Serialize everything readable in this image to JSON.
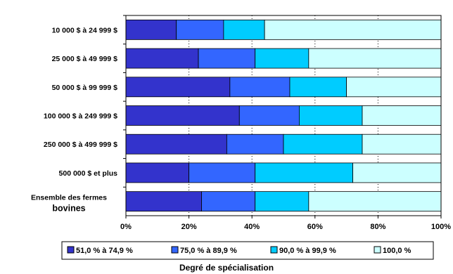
{
  "chart_data": {
    "type": "bar",
    "orientation": "horizontal",
    "stacked": true,
    "percent": true,
    "title": "",
    "xlabel": "Degré de spécialisation",
    "ylabel": "",
    "xlim": [
      0,
      100
    ],
    "x_ticks": [
      "0%",
      "20%",
      "40%",
      "60%",
      "80%",
      "100%"
    ],
    "grid": "vertical dotted",
    "legend_position": "bottom",
    "categories": [
      "10 000 $ à 24 999 $",
      "25 000 $ à 49 999 $",
      "50 000 $ à 99 999 $",
      "100 000 $ à 249 999 $",
      "250 000 $ à 499 999 $",
      "500 000 $ et plus",
      [
        "Ensemble des fermes",
        "bovines"
      ]
    ],
    "series": [
      {
        "name": "51,0 % à 74,9 %",
        "color": "#3333cc",
        "values": [
          16,
          23,
          33,
          36,
          32,
          20,
          24
        ]
      },
      {
        "name": "75,0 % à 89,9 %",
        "color": "#3366ff",
        "values": [
          15,
          18,
          19,
          19,
          18,
          21,
          17
        ]
      },
      {
        "name": "90,0 % à 99,9 %",
        "color": "#00ccff",
        "values": [
          13,
          17,
          18,
          20,
          25,
          31,
          17
        ]
      },
      {
        "name": "100,0 %",
        "color": "#ccffff",
        "values": [
          56,
          42,
          30,
          25,
          25,
          28,
          42
        ]
      }
    ]
  }
}
